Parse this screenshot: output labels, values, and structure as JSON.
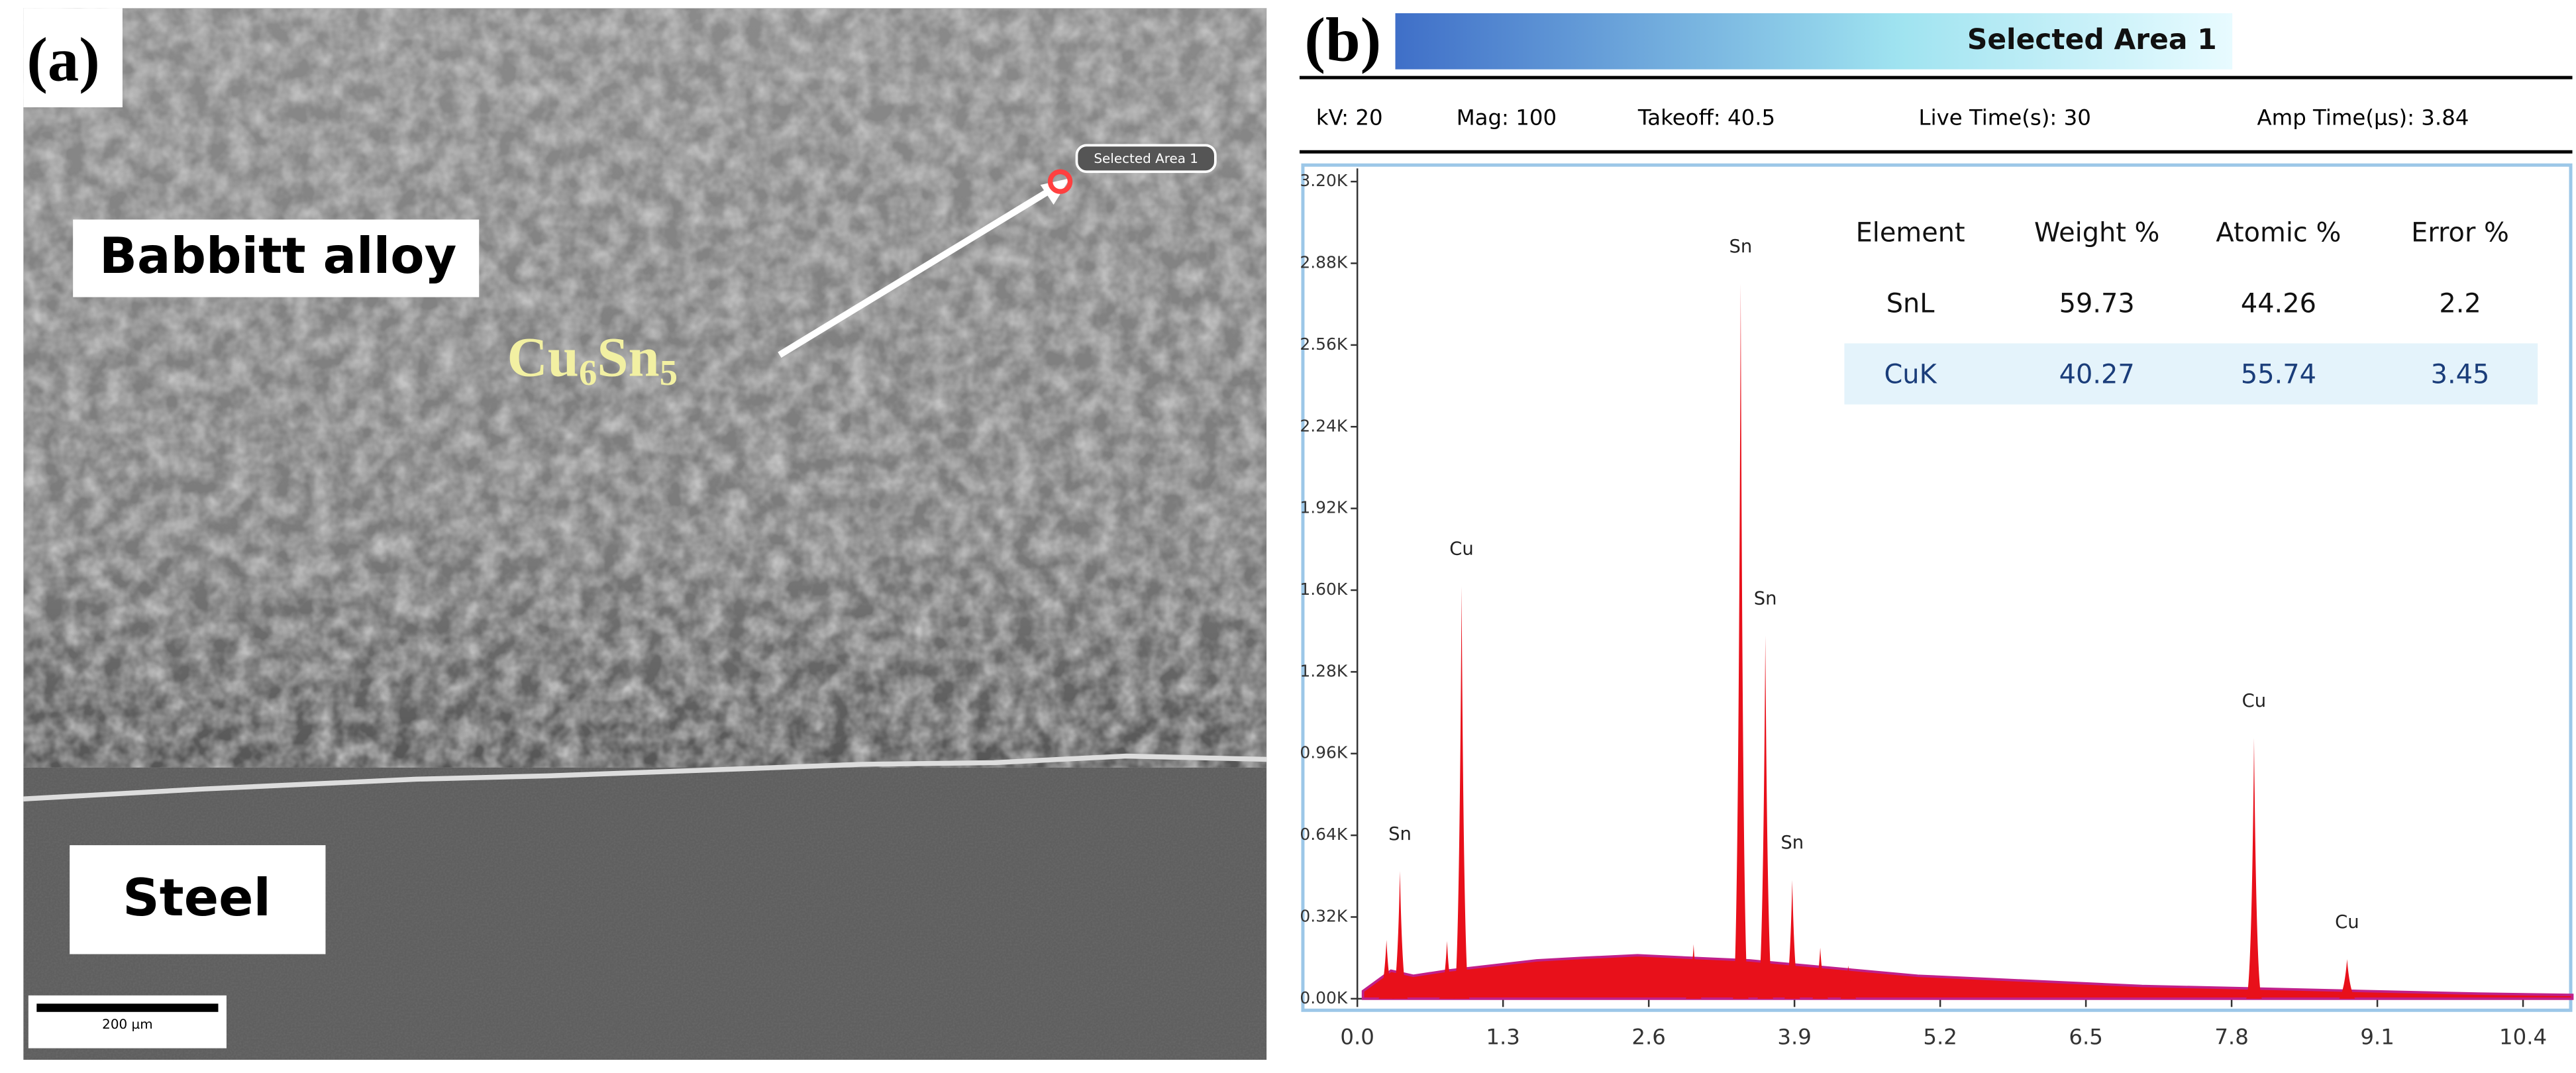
{
  "panel_a": {
    "label": "(a)",
    "babbitt": "Babbitt alloy",
    "phase": [
      "Cu",
      "6",
      "Sn",
      "5"
    ],
    "selected": "Selected Area 1",
    "steel": "Steel",
    "scale": "200 µm"
  },
  "chart_data": {
    "type": "spectrum",
    "label": "(b)",
    "title": "Selected Area 1",
    "info": [
      "kV: 20",
      "Mag: 100",
      "Takeoff: 40.5",
      "Live Time(s): 30",
      "Amp Time(µs): 3.84"
    ],
    "xlim": [
      0,
      10.84
    ],
    "ylim": [
      0,
      3200
    ],
    "xticks": [
      {
        "value": 0,
        "label": "0.0"
      },
      1.3,
      2.6,
      3.9,
      5.2,
      6.5,
      7.8,
      9.1,
      10.4
    ],
    "yticks": [
      {
        "value": 0,
        "label": "0.00K"
      },
      {
        "value": 320,
        "label": "0.32K"
      },
      {
        "value": 640,
        "label": "0.64K"
      },
      {
        "value": 960,
        "label": "0.96K"
      },
      {
        "value": 1280,
        "label": "1.28K"
      },
      {
        "value": 1600,
        "label": "1.60K"
      },
      {
        "value": 1920,
        "label": "1.92K"
      },
      {
        "value": 2240,
        "label": "2.24K"
      },
      {
        "value": 2560,
        "label": "2.56K"
      },
      {
        "value": 2880,
        "label": "2.88K"
      },
      {
        "value": 3200,
        "label": "3.20K"
      }
    ],
    "color": "#e8101a",
    "continuum": {
      "x": [
        0.05,
        0.3,
        0.5,
        0.8,
        1.2,
        1.6,
        2.0,
        2.5,
        3.0,
        3.5,
        4.0,
        4.5,
        5.0,
        6.0,
        7.0,
        8.0,
        9.0,
        10.0,
        10.84
      ],
      "values": [
        30,
        110,
        90,
        110,
        130,
        150,
        160,
        170,
        160,
        150,
        130,
        110,
        90,
        70,
        50,
        40,
        30,
        20,
        15
      ]
    },
    "peaks": [
      {
        "energy": 0.26,
        "counts": 230
      },
      {
        "element": "Sn",
        "energy": 0.38,
        "counts": 500
      },
      {
        "energy": 0.8,
        "counts": 226
      },
      {
        "element": "Cu",
        "energy": 0.93,
        "counts": 1616
      },
      {
        "energy": 3.0,
        "counts": 213
      },
      {
        "element": "Sn",
        "energy": 3.42,
        "counts": 2800
      },
      {
        "element": "Sn",
        "energy": 3.64,
        "counts": 1422
      },
      {
        "element": "Sn",
        "energy": 3.88,
        "counts": 465
      },
      {
        "energy": 4.13,
        "counts": 200
      },
      {
        "energy": 4.38,
        "counts": 130
      },
      {
        "element": "Cu",
        "energy": 8.0,
        "counts": 1021
      },
      {
        "element": "Cu",
        "energy": 8.83,
        "counts": 155
      }
    ],
    "table": {
      "header": [
        "Element",
        "Weight %",
        "Atomic %",
        "Error %"
      ],
      "rows": [
        [
          "SnL",
          "59.73",
          "44.26",
          "2.2"
        ],
        [
          "CuK",
          "40.27",
          "55.74",
          "3.45"
        ]
      ]
    }
  }
}
